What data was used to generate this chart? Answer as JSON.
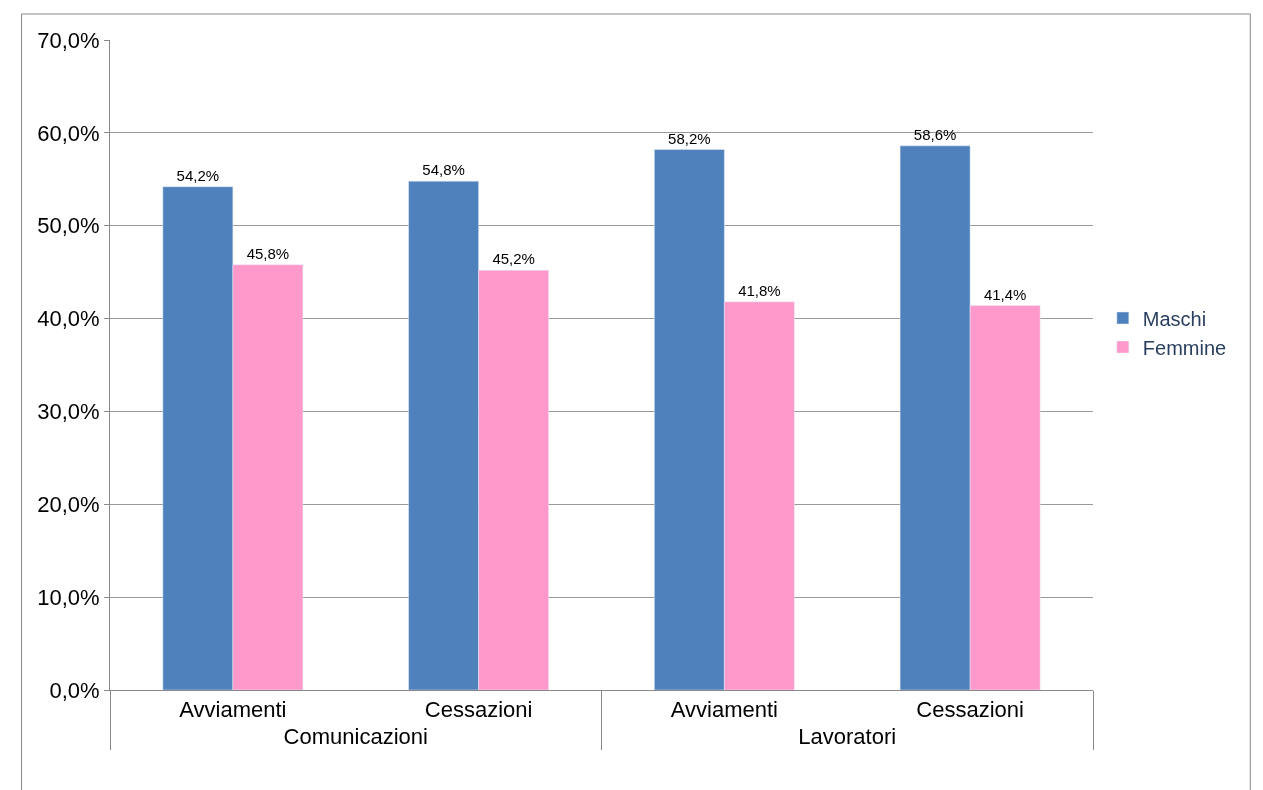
{
  "chart_data": {
    "type": "bar",
    "categories": [
      "Avviamenti",
      "Cessazioni",
      "Avviamenti",
      "Cessazioni"
    ],
    "annotations": [
      "Comunicazioni",
      "Lavoratori"
    ],
    "series": [
      {
        "name": "Maschi",
        "color": "#4f81bd",
        "values": [
          54.2,
          54.8,
          58.2,
          58.6
        ],
        "value_labels": [
          "54,2%",
          "54,8%",
          "58,2%",
          "58,6%"
        ]
      },
      {
        "name": "Femmine",
        "color": "#ff99cc",
        "values": [
          45.8,
          45.2,
          41.8,
          41.4
        ],
        "value_labels": [
          "45,8%",
          "45,2%",
          "41,8%",
          "41,4%"
        ]
      }
    ],
    "ylim": [
      0,
      70
    ],
    "yticks": [
      {
        "value": 0,
        "label": "0,0%"
      },
      {
        "value": 10,
        "label": "10,0%"
      },
      {
        "value": 20,
        "label": "20,0%"
      },
      {
        "value": 30,
        "label": "30,0%"
      },
      {
        "value": 40,
        "label": "40,0%"
      },
      {
        "value": 50,
        "label": "50,0%"
      },
      {
        "value": 60,
        "label": "60,0%"
      },
      {
        "value": 70,
        "label": "70,0%"
      }
    ],
    "grid": "y",
    "legend": "right"
  }
}
